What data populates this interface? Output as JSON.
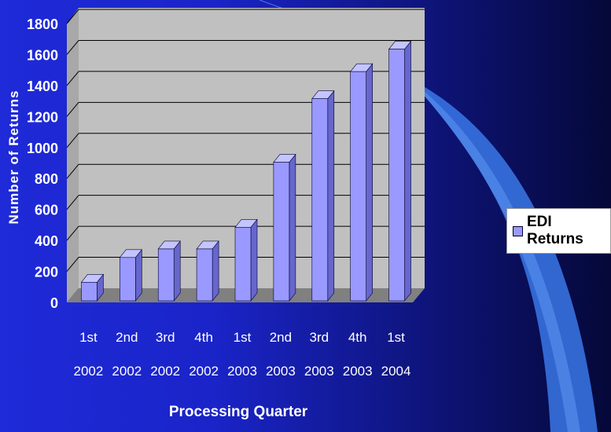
{
  "colors": {
    "plot_background": "#c0c0c0",
    "floor": "#808080",
    "bar_front": "#9999ff",
    "bar_top": "#c4c4ff",
    "bar_side": "#6666cc",
    "text": "#ffffff",
    "swoosh": "#3a78e8"
  },
  "chart_data": {
    "type": "bar",
    "title": "",
    "xlabel": "Processing Quarter",
    "ylabel": "Number of Returns",
    "categories": [
      [
        "1st",
        "2002"
      ],
      [
        "2nd",
        "2002"
      ],
      [
        "3rd",
        "2002"
      ],
      [
        "4th",
        "2002"
      ],
      [
        "1st",
        "2003"
      ],
      [
        "2nd",
        "2003"
      ],
      [
        "3rd",
        "2003"
      ],
      [
        "4th",
        "2003"
      ],
      [
        "1st",
        "2004"
      ]
    ],
    "series": [
      {
        "name": "EDI Returns",
        "values": [
          130,
          290,
          345,
          345,
          485,
          905,
          1315,
          1490,
          1635
        ]
      }
    ],
    "ylim": [
      0,
      1800
    ],
    "yticks": [
      0,
      200,
      400,
      600,
      800,
      1000,
      1200,
      1400,
      1600,
      1800
    ],
    "grid": true,
    "legend_position": "right"
  }
}
